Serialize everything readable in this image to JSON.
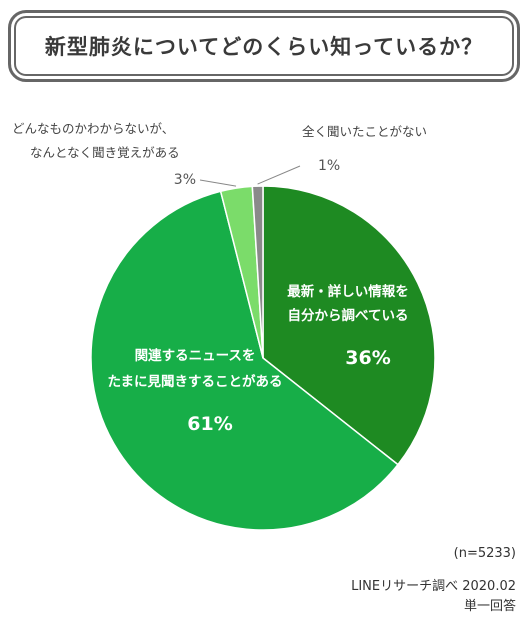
{
  "title": "新型肺炎についてどのくらい知っているか？",
  "chart_data": {
    "type": "pie",
    "slices": [
      {
        "label_lines": [
          "最新・詳しい情報を",
          "自分から調べている"
        ],
        "value": 36,
        "pct": "36%",
        "color": "#1e8a22"
      },
      {
        "label_lines": [
          "関連するニュースを",
          "たまに見聞きすることがある"
        ],
        "value": 61,
        "pct": "61%",
        "color": "#17ae48"
      },
      {
        "label_lines": [
          "どんなものかわからないが、",
          "なんとなく聞き覚えがある"
        ],
        "value": 3,
        "pct": "3%",
        "color": "#7bdc6a"
      },
      {
        "label_lines": [
          "全く聞いたことがない"
        ],
        "value": 1,
        "pct": "1%",
        "color": "#8a8a8a"
      }
    ]
  },
  "footer": {
    "n": "(n=5233)",
    "source": "LINEリサーチ調べ 2020.02",
    "type": "単一回答"
  }
}
